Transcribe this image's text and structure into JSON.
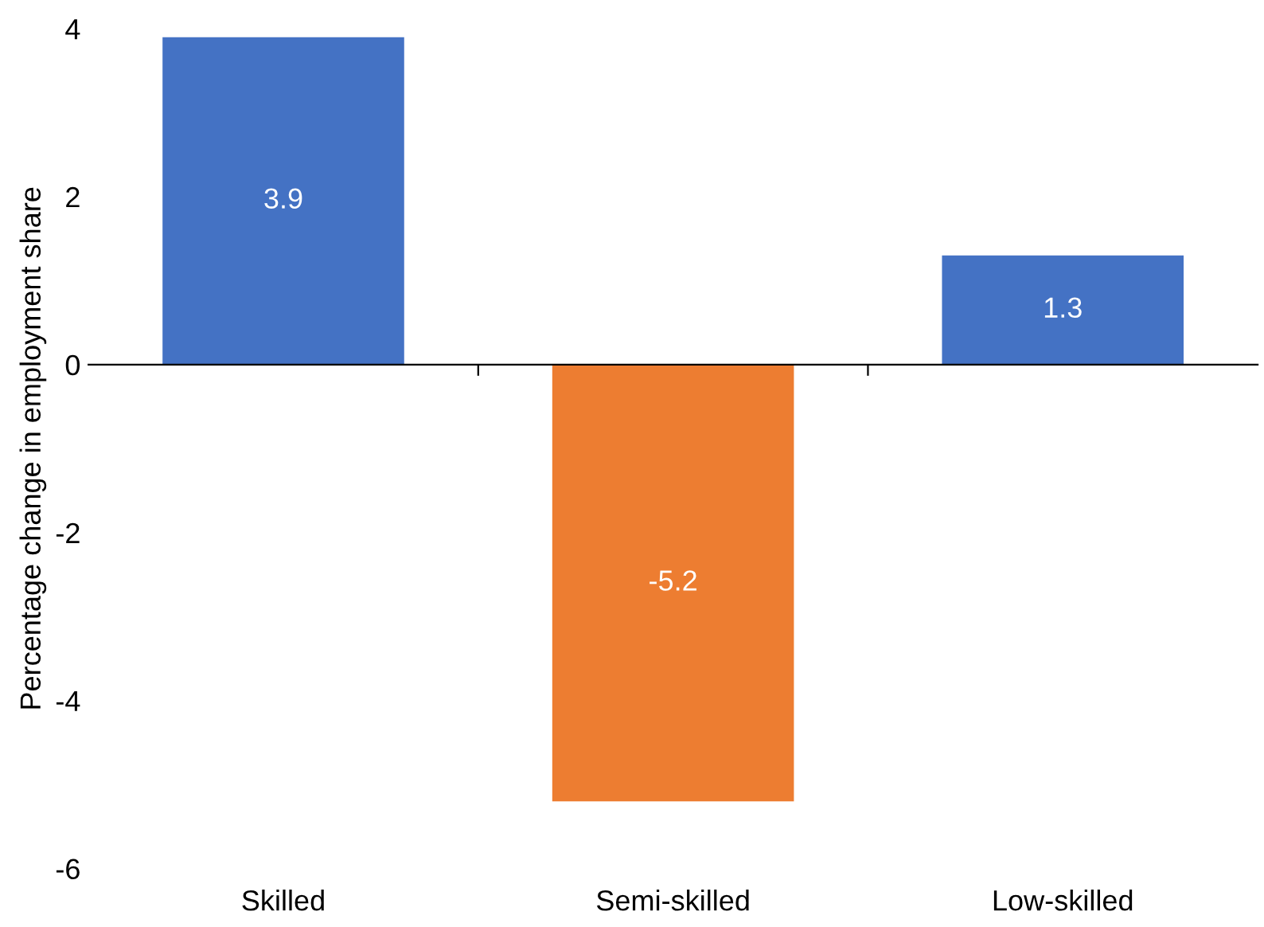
{
  "chart_data": {
    "type": "bar",
    "ylabel": "Percentage change in employment share",
    "categories": [
      "Skilled",
      "Semi-skilled",
      "Low-skilled"
    ],
    "values": [
      3.9,
      -5.2,
      1.3
    ],
    "colors": [
      "#4472c4",
      "#ed7d31",
      "#4472c4"
    ],
    "ylim": [
      -6,
      4
    ],
    "yticks": [
      -6,
      -4,
      -2,
      0,
      2,
      4
    ],
    "data_labels": true
  }
}
